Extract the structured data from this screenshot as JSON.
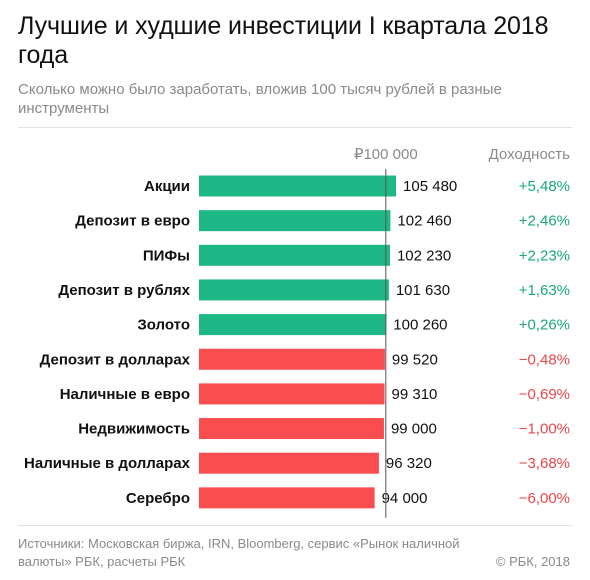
{
  "header": {
    "title": "Лучшие и худшие инвестиции I квартала 2018 года",
    "subtitle": "Сколько можно было заработать, вложив 100 тысяч рублей в разные инструменты"
  },
  "footer": {
    "sources": "Источники: Московская биржа, IRN, Bloomberg, сервис «Рынок наличной валюты» РБК, расчеты РБК",
    "copyright": "© РБК, 2018"
  },
  "colors": {
    "positive": "#1db886",
    "negative": "#f94d50",
    "positive_text": "#1aa878",
    "negative_text": "#e8474a",
    "reference_line": "#555555",
    "muted_text": "#8a8a8a"
  },
  "chart_data": {
    "type": "bar",
    "orientation": "horizontal",
    "reference_label": "₽100 000",
    "reference_value": 100000,
    "yield_header": "Доходность",
    "grid": false,
    "categories": [
      "Акции",
      "Депозит в евро",
      "ПИФы",
      "Депозит в рублях",
      "Золото",
      "Депозит в долларах",
      "Наличные в евро",
      "Недвижимость",
      "Наличные в долларах",
      "Серебро"
    ],
    "values": [
      105480,
      102460,
      102230,
      101630,
      100260,
      99520,
      99310,
      99000,
      96320,
      94000
    ],
    "value_labels": [
      "105 480",
      "102 460",
      "102 230",
      "101 630",
      "100 260",
      "99 520",
      "99 310",
      "99 000",
      "96 320",
      "94 000"
    ],
    "yields": [
      "+5,48%",
      "+2,46%",
      "+2,23%",
      "+1,63%",
      "+0,26%",
      "−0,48%",
      "−0,69%",
      "−1,00%",
      "−3,68%",
      "−6,00%"
    ]
  }
}
